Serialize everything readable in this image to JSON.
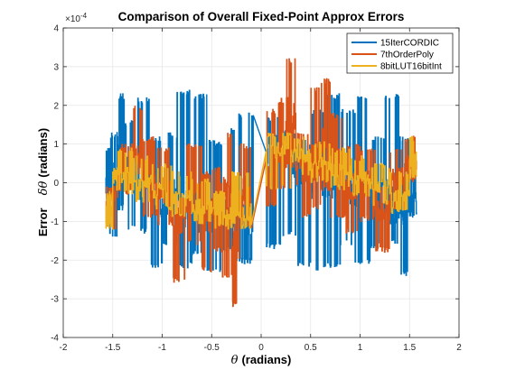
{
  "chart_data": {
    "type": "line",
    "title": "Comparison of Overall Fixed-Point Approx Errors",
    "xlabel_symbol": "θ",
    "xlabel_text": "(radians)",
    "ylabel_text": "Error",
    "ylabel_symbol": "δθ",
    "ylabel_units": "(radians)",
    "y_exponent_base": "×10",
    "y_exponent_power": "-4",
    "xlim": [
      -2,
      2
    ],
    "ylim": [
      -4,
      4
    ],
    "x_ticks": [
      -2,
      -1.5,
      -1,
      -0.5,
      0,
      0.5,
      1,
      1.5,
      2
    ],
    "x_tick_labels": [
      "-2",
      "-1.5",
      "-1",
      "-0.5",
      "0",
      "0.5",
      "1",
      "1.5",
      "2"
    ],
    "y_ticks": [
      -4,
      -3,
      -2,
      -1,
      0,
      1,
      2,
      3,
      4
    ],
    "y_tick_labels": [
      "-4",
      "-3",
      "-2",
      "-1",
      "0",
      "1",
      "2",
      "3",
      "4"
    ],
    "grid": true,
    "legend_position": "top-right",
    "x_range": [
      -1.5708,
      1.5708
    ],
    "series": [
      {
        "name": "15IterCORDIC",
        "color": "#0072BD",
        "segments": [
          {
            "x": [
              -1.57,
              -1.53
            ],
            "y_min": -0.4,
            "y_max": 0.9,
            "center": 0.2
          },
          {
            "x": [
              -1.53,
              -1.45
            ],
            "y_min": -1.4,
            "y_max": 1.3,
            "center": 0.1
          },
          {
            "x": [
              -1.45,
              -1.38
            ],
            "y_min": -0.7,
            "y_max": 2.3,
            "center": 0.5
          },
          {
            "x": [
              -1.38,
              -1.25
            ],
            "y_min": -1.2,
            "y_max": 1.6,
            "center": 0.2
          },
          {
            "x": [
              -1.25,
              -1.12
            ],
            "y_min": -1.3,
            "y_max": 2.2,
            "center": 0.1
          },
          {
            "x": [
              -1.12,
              -1.0
            ],
            "y_min": -2.2,
            "y_max": 1.2,
            "center": -0.3
          },
          {
            "x": [
              -1.0,
              -0.85
            ],
            "y_min": -1.6,
            "y_max": 1.3,
            "center": -0.4
          },
          {
            "x": [
              -0.85,
              -0.7
            ],
            "y_min": -2.2,
            "y_max": 2.4,
            "center": -0.5
          },
          {
            "x": [
              -0.7,
              -0.55
            ],
            "y_min": -1.9,
            "y_max": 2.3,
            "center": -0.6
          },
          {
            "x": [
              -0.55,
              -0.4
            ],
            "y_min": -2.3,
            "y_max": 1.1,
            "center": -0.7
          },
          {
            "x": [
              -0.4,
              -0.25
            ],
            "y_min": -1.8,
            "y_max": 1.4,
            "center": -0.8
          },
          {
            "x": [
              -0.25,
              -0.08
            ],
            "y_min": -2.1,
            "y_max": 1.8,
            "center": -0.9
          },
          {
            "x": [
              0.05,
              0.2
            ],
            "y_min": -1.7,
            "y_max": 1.7,
            "center": 0.8
          },
          {
            "x": [
              0.2,
              0.35
            ],
            "y_min": -1.4,
            "y_max": 1.4,
            "center": 0.6
          },
          {
            "x": [
              0.35,
              0.5
            ],
            "y_min": -2.2,
            "y_max": 1.1,
            "center": 0.4
          },
          {
            "x": [
              0.5,
              0.65
            ],
            "y_min": -2.3,
            "y_max": 1.9,
            "center": 0.3
          },
          {
            "x": [
              0.65,
              0.8
            ],
            "y_min": -2.2,
            "y_max": 2.3,
            "center": 0.2
          },
          {
            "x": [
              0.8,
              0.95
            ],
            "y_min": -1.6,
            "y_max": 1.9,
            "center": 0.0
          },
          {
            "x": [
              0.95,
              1.1
            ],
            "y_min": -2.1,
            "y_max": 2.3,
            "center": -0.1
          },
          {
            "x": [
              1.1,
              1.25
            ],
            "y_min": -1.7,
            "y_max": 1.2,
            "center": -0.3
          },
          {
            "x": [
              1.25,
              1.4
            ],
            "y_min": -1.6,
            "y_max": 2.3,
            "center": -0.4
          },
          {
            "x": [
              1.4,
              1.5
            ],
            "y_min": -2.4,
            "y_max": 1.2,
            "center": -0.5
          },
          {
            "x": [
              1.5,
              1.57
            ],
            "y_min": -0.9,
            "y_max": 0.2,
            "center": -0.4
          }
        ]
      },
      {
        "name": "7thOrderPoly",
        "color": "#D95319",
        "segments": [
          {
            "x": [
              -1.57,
              -1.45
            ],
            "y_min": -1.2,
            "y_max": 0.0,
            "center": -0.3
          },
          {
            "x": [
              -1.45,
              -1.3
            ],
            "y_min": -0.3,
            "y_max": 1.0,
            "center": 0.3
          },
          {
            "x": [
              -1.3,
              -1.2
            ],
            "y_min": 0.2,
            "y_max": 2.0,
            "center": 0.7
          },
          {
            "x": [
              -1.2,
              -1.05
            ],
            "y_min": -0.9,
            "y_max": 1.2,
            "center": 0.1
          },
          {
            "x": [
              -1.05,
              -0.9
            ],
            "y_min": -1.1,
            "y_max": 0.9,
            "center": -0.2
          },
          {
            "x": [
              -0.9,
              -0.75
            ],
            "y_min": -2.6,
            "y_max": -0.4,
            "center": -1.0
          },
          {
            "x": [
              -0.75,
              -0.6
            ],
            "y_min": -1.6,
            "y_max": 1.0,
            "center": -0.4
          },
          {
            "x": [
              -0.6,
              -0.5
            ],
            "y_min": -2.3,
            "y_max": 0.3,
            "center": -0.9
          },
          {
            "x": [
              -0.5,
              -0.4
            ],
            "y_min": -1.8,
            "y_max": 0.4,
            "center": -0.6
          },
          {
            "x": [
              -0.4,
              -0.3
            ],
            "y_min": -2.5,
            "y_max": 1.3,
            "center": -0.5
          },
          {
            "x": [
              -0.3,
              -0.22
            ],
            "y_min": -3.2,
            "y_max": -0.7,
            "center": -1.6
          },
          {
            "x": [
              -0.22,
              -0.1
            ],
            "y_min": -1.2,
            "y_max": 1.0,
            "center": -0.2
          },
          {
            "x": [
              0.05,
              0.15
            ],
            "y_min": -0.6,
            "y_max": 1.9,
            "center": 0.6
          },
          {
            "x": [
              0.15,
              0.3
            ],
            "y_min": -0.2,
            "y_max": 2.2,
            "center": 0.8
          },
          {
            "x": [
              0.25,
              0.35
            ],
            "y_min": 0.4,
            "y_max": 3.2,
            "center": 1.6
          },
          {
            "x": [
              0.35,
              0.5
            ],
            "y_min": -0.9,
            "y_max": 1.3,
            "center": 0.3
          },
          {
            "x": [
              0.5,
              0.6
            ],
            "y_min": -0.7,
            "y_max": 2.5,
            "center": 0.6
          },
          {
            "x": [
              0.6,
              0.7
            ],
            "y_min": -0.2,
            "y_max": 2.7,
            "center": 0.9
          },
          {
            "x": [
              0.7,
              0.85
            ],
            "y_min": -0.9,
            "y_max": 1.8,
            "center": 0.4
          },
          {
            "x": [
              0.85,
              1.0
            ],
            "y_min": -1.3,
            "y_max": 1.0,
            "center": -0.1
          },
          {
            "x": [
              1.0,
              1.15
            ],
            "y_min": -1.0,
            "y_max": 0.9,
            "center": 0.0
          },
          {
            "x": [
              1.15,
              1.3
            ],
            "y_min": -1.8,
            "y_max": -0.1,
            "center": -0.7
          },
          {
            "x": [
              1.3,
              1.45
            ],
            "y_min": -0.7,
            "y_max": 0.9,
            "center": 0.1
          },
          {
            "x": [
              1.45,
              1.57
            ],
            "y_min": 0.0,
            "y_max": 1.2,
            "center": 0.5
          }
        ]
      },
      {
        "name": "8bitLUT16bitInt",
        "color": "#EDB120",
        "segments": [
          {
            "x": [
              -1.57,
              -1.5
            ],
            "y_min": -1.2,
            "y_max": -0.2,
            "center": -0.7
          },
          {
            "x": [
              -1.5,
              -1.3
            ],
            "y_min": -0.3,
            "y_max": 0.9,
            "center": 0.2
          },
          {
            "x": [
              -1.3,
              -1.1
            ],
            "y_min": -0.5,
            "y_max": 0.7,
            "center": 0.0
          },
          {
            "x": [
              -1.1,
              -0.9
            ],
            "y_min": -0.7,
            "y_max": 0.5,
            "center": -0.2
          },
          {
            "x": [
              -0.9,
              -0.7
            ],
            "y_min": -0.9,
            "y_max": 0.3,
            "center": -0.4
          },
          {
            "x": [
              -0.7,
              -0.5
            ],
            "y_min": -1.1,
            "y_max": 0.1,
            "center": -0.6
          },
          {
            "x": [
              -0.5,
              -0.3
            ],
            "y_min": -1.2,
            "y_max": -0.2,
            "center": -0.8
          },
          {
            "x": [
              -0.3,
              -0.1
            ],
            "y_min": -1.2,
            "y_max": 0.3,
            "center": -0.8
          },
          {
            "x": [
              0.05,
              0.3
            ],
            "y_min": -0.2,
            "y_max": 1.3,
            "center": 0.8
          },
          {
            "x": [
              0.3,
              0.5
            ],
            "y_min": 0.2,
            "y_max": 1.2,
            "center": 0.7
          },
          {
            "x": [
              0.5,
              0.7
            ],
            "y_min": 0.0,
            "y_max": 1.1,
            "center": 0.5
          },
          {
            "x": [
              0.7,
              0.9
            ],
            "y_min": -0.2,
            "y_max": 0.9,
            "center": 0.3
          },
          {
            "x": [
              0.9,
              1.1
            ],
            "y_min": -0.4,
            "y_max": 0.7,
            "center": 0.1
          },
          {
            "x": [
              1.1,
              1.3
            ],
            "y_min": -0.6,
            "y_max": 0.5,
            "center": -0.1
          },
          {
            "x": [
              1.3,
              1.5
            ],
            "y_min": -0.8,
            "y_max": 0.3,
            "center": -0.3
          },
          {
            "x": [
              1.5,
              1.57
            ],
            "y_min": 0.1,
            "y_max": 1.2,
            "center": 0.6
          }
        ]
      }
    ]
  }
}
